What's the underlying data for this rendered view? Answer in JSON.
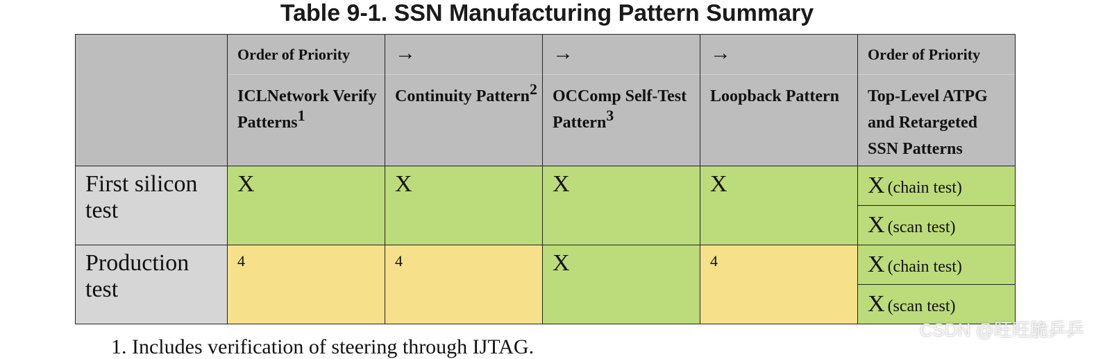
{
  "title": "Table 9-1. SSN Manufacturing Pattern Summary",
  "headers": [
    {
      "top": "Order of Priority",
      "bottom": "ICLNetwork Verify Patterns",
      "sup": "1"
    },
    {
      "top": "→",
      "bottom": "Continuity Pattern",
      "sup": "2"
    },
    {
      "top": "→",
      "bottom": "OCComp Self-Test Pattern",
      "sup": "3"
    },
    {
      "top": "→",
      "bottom": "Loopback Pattern",
      "sup": ""
    },
    {
      "top": "Order of Priority",
      "bottom": "Top-Level ATPG and Retargeted SSN Patterns",
      "sup": ""
    }
  ],
  "rows": [
    {
      "label": "First silicon test",
      "cells": [
        "X",
        "X",
        "X",
        "X"
      ],
      "last": [
        {
          "mark": "X",
          "note": "(chain test)"
        },
        {
          "mark": "X",
          "note": "(scan test)"
        }
      ]
    },
    {
      "label": "Production test",
      "cells": [
        "4",
        "4",
        "X",
        "4"
      ],
      "last": [
        {
          "mark": "X",
          "note": "(chain test)"
        },
        {
          "mark": "X",
          "note": "(scan test)"
        }
      ]
    }
  ],
  "footnote": "1. Includes verification of steering through IJTAG.",
  "watermark": "CSDN @旺旺脆乒乒",
  "colors": {
    "header_grey": "#bdbdbd",
    "label_grey": "#d6d6d6",
    "green": "#bcdb7a",
    "yellow": "#f6e08a"
  }
}
